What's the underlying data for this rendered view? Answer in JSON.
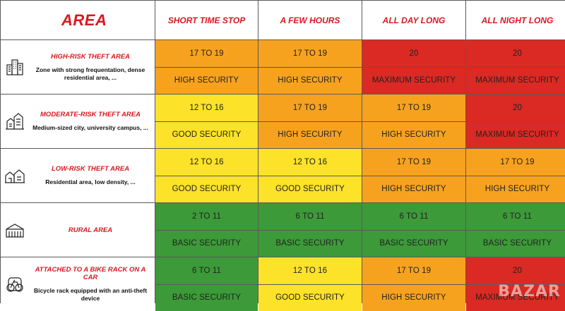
{
  "header": {
    "area": "AREA",
    "columns": [
      "SHORT TIME STOP",
      "A FEW HOURS",
      "ALL DAY LONG",
      "ALL NIGHT LONG"
    ]
  },
  "rows": [
    {
      "title": "HIGH-RISK THEFT AREA",
      "desc": "Zone with strong frequentation, dense residential area, ...",
      "icon": "city-buildings-icon",
      "levels": [
        "17 TO 19",
        "17 TO 19",
        "20",
        "20"
      ],
      "security": [
        "HIGH SECURITY",
        "HIGH SECURITY",
        "MAXIMUM SECURITY",
        "MAXIMUM SECURITY"
      ],
      "colors": [
        "orange",
        "orange",
        "red",
        "red"
      ]
    },
    {
      "title": "MODERATE-RISK THEFT AREA",
      "desc": "Medium-sized city, university campus, ...",
      "icon": "town-icon",
      "levels": [
        "12 TO 16",
        "17 TO 19",
        "17 TO 19",
        "20"
      ],
      "security": [
        "GOOD SECURITY",
        "HIGH SECURITY",
        "HIGH SECURITY",
        "MAXIMUM SECURITY"
      ],
      "colors": [
        "yellow",
        "orange",
        "orange",
        "red"
      ]
    },
    {
      "title": "LOW-RISK THEFT AREA",
      "desc": "Residential area, low density, ...",
      "icon": "houses-icon",
      "levels": [
        "12 TO 16",
        "12 TO 16",
        "17 TO 19",
        "17 TO 19"
      ],
      "security": [
        "GOOD SECURITY",
        "GOOD SECURITY",
        "HIGH SECURITY",
        "HIGH SECURITY"
      ],
      "colors": [
        "yellow",
        "yellow",
        "orange",
        "orange"
      ]
    },
    {
      "title": "RURAL AREA",
      "desc": "",
      "icon": "farm-icon",
      "levels": [
        "2 TO 11",
        "6 TO 11",
        "6 TO 11",
        "6 TO 11"
      ],
      "security": [
        "BASIC SECURITY",
        "BASIC SECURITY",
        "BASIC SECURITY",
        "BASIC SECURITY"
      ],
      "colors": [
        "green",
        "green",
        "green",
        "green"
      ]
    },
    {
      "title": "ATTACHED TO A BIKE RACK ON A CAR",
      "desc": "Bicycle rack equipped with an anti-theft device",
      "icon": "car-bike-rack-icon",
      "levels": [
        "6 TO 11",
        "12 TO 16",
        "17 TO 19",
        "20"
      ],
      "security": [
        "BASIC SECURITY",
        "GOOD SECURITY",
        "HIGH SECURITY",
        "MAXIMUM SECURITY"
      ],
      "colors": [
        "green",
        "yellow",
        "orange",
        "red"
      ]
    }
  ],
  "watermark": "BAZAR"
}
